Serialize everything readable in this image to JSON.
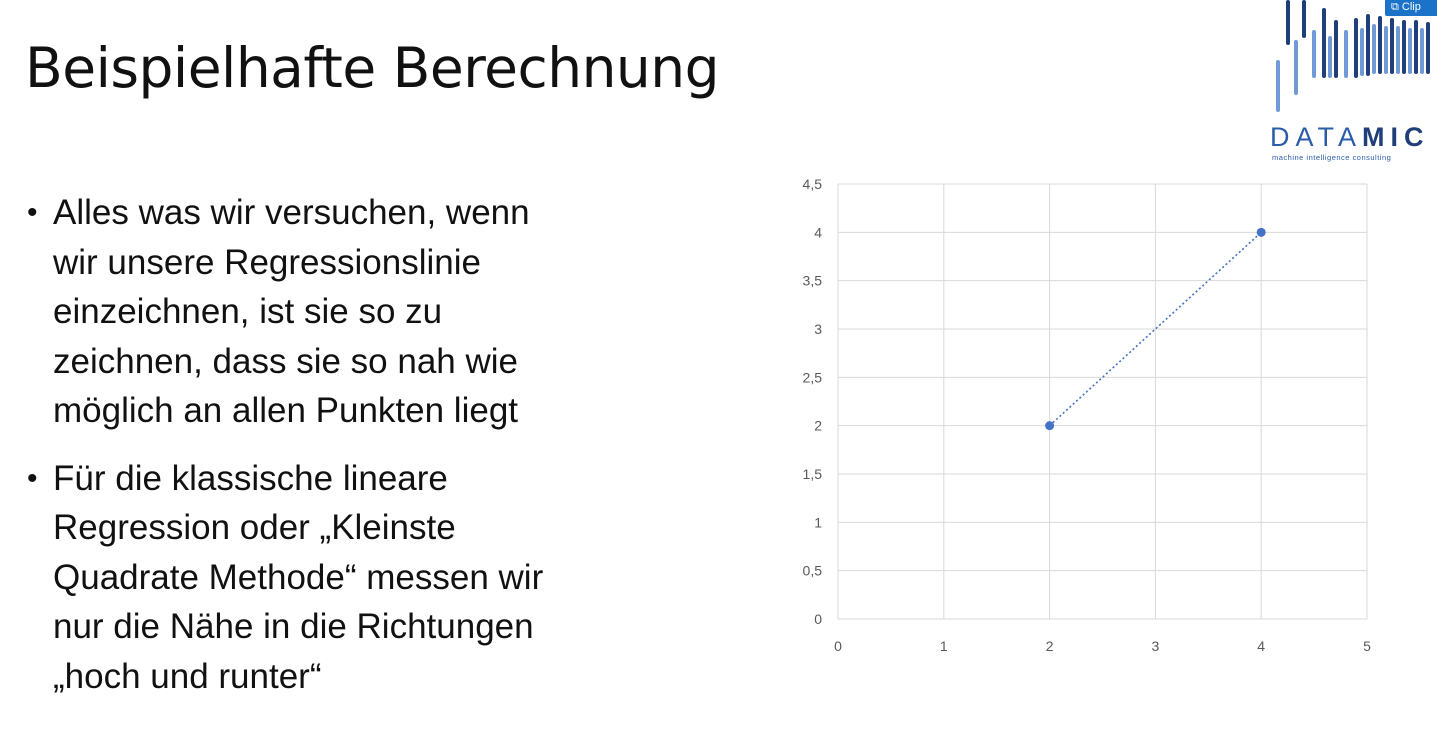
{
  "slide": {
    "title": "Beispielhafte Berechnung",
    "bullets": [
      "Alles was wir versuchen, wenn\nwir unsere Regressionslinie\neinzeichnen, ist sie so zu\nzeichnen, dass sie so nah wie\nmöglich an allen Punkten liegt",
      "Für die klassische lineare\nRegression oder „Kleinste\nQuadrate Methode“ messen wir\nnur die Nähe in die Richtungen\n„hoch und runter“"
    ]
  },
  "logo": {
    "word_light": "DATA",
    "word_bold": "MIC",
    "tagline": "machine intelligence consulting"
  },
  "clip_button": {
    "label": "Clip",
    "icon": "clip-icon"
  },
  "colors": {
    "point": "#4472c4",
    "grid": "#d9d9d9",
    "axis_text": "#595959",
    "logo_blue": "#2b5ca8"
  },
  "chart_data": {
    "type": "scatter",
    "x_ticks": [
      "0",
      "1",
      "2",
      "3",
      "4",
      "5"
    ],
    "y_ticks": [
      "0",
      "0,5",
      "1",
      "1,5",
      "2",
      "2,5",
      "3",
      "3,5",
      "4",
      "4,5"
    ],
    "xlim": [
      0,
      5
    ],
    "ylim": [
      0,
      4.5
    ],
    "grid": true,
    "series": [
      {
        "x": [
          2,
          4
        ],
        "y": [
          2,
          4
        ],
        "line_style": "dotted"
      }
    ]
  }
}
